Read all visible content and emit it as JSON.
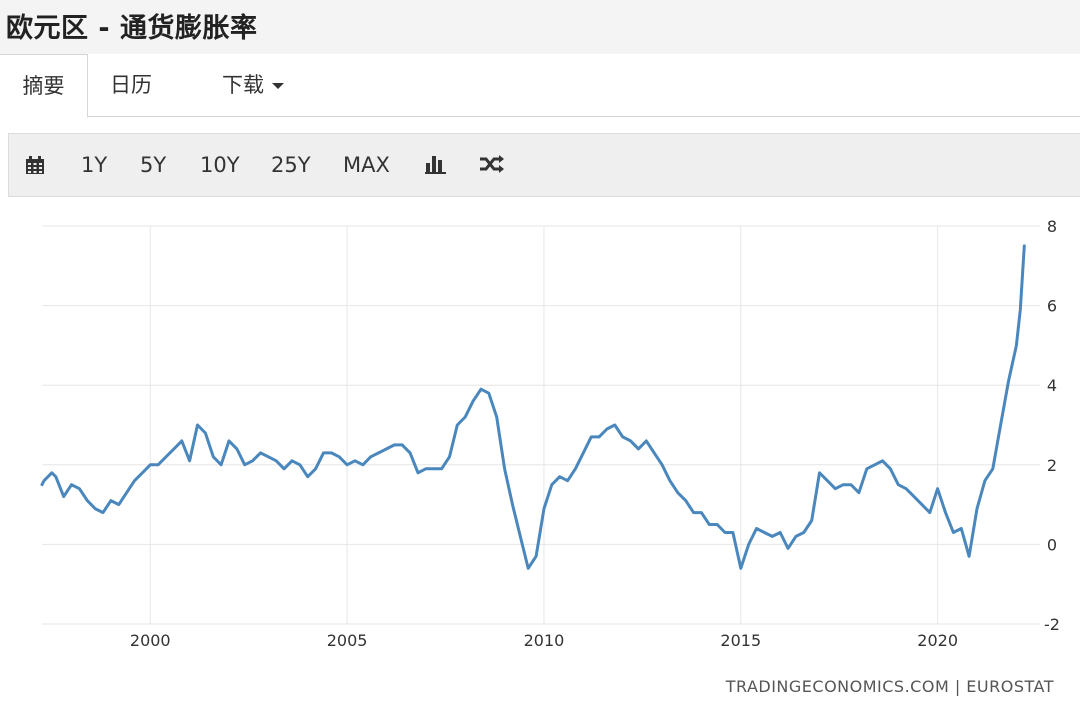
{
  "header": {
    "title": "欧元区 - 通货膨胀率"
  },
  "tabs": [
    {
      "label": "摘要",
      "active": true
    },
    {
      "label": "日历",
      "active": false
    },
    {
      "label": "下载",
      "active": false
    }
  ],
  "toolbar": {
    "calendar_icon": "calendar-icon",
    "ranges": [
      "1Y",
      "5Y",
      "10Y",
      "25Y",
      "MAX"
    ],
    "bar_chart_icon": "bar-chart-icon",
    "shuffle_icon": "shuffle-icon"
  },
  "source": "TRADINGECONOMICS.COM | EUROSTAT",
  "colors": {
    "line": "#4a87bd",
    "grid": "#e6e6e6",
    "text": "#333333"
  },
  "chart_data": {
    "type": "line",
    "title": "",
    "xlabel": "",
    "ylabel": "",
    "x_ticks": [
      2000,
      2005,
      2010,
      2015,
      2020
    ],
    "y_ticks": [
      8,
      6,
      4,
      2,
      0,
      -2
    ],
    "xlim": [
      1997.25,
      2022.6
    ],
    "ylim": [
      -2,
      8
    ],
    "y_axis_position": "right",
    "grid": true,
    "series": [
      {
        "name": "",
        "color": "#4a87bd",
        "x": [
          1997.0,
          1997.3,
          1997.5,
          1997.6,
          1997.8,
          1998.0,
          1998.2,
          1998.4,
          1998.6,
          1998.8,
          1999.0,
          1999.2,
          1999.4,
          1999.6,
          1999.8,
          2000.0,
          2000.2,
          2000.4,
          2000.6,
          2000.8,
          2001.0,
          2001.2,
          2001.4,
          2001.6,
          2001.8,
          2002.0,
          2002.2,
          2002.4,
          2002.6,
          2002.8,
          2003.0,
          2003.2,
          2003.4,
          2003.6,
          2003.8,
          2004.0,
          2004.2,
          2004.4,
          2004.6,
          2004.8,
          2005.0,
          2005.2,
          2005.4,
          2005.6,
          2005.8,
          2006.0,
          2006.2,
          2006.4,
          2006.6,
          2006.8,
          2007.0,
          2007.2,
          2007.4,
          2007.6,
          2007.8,
          2008.0,
          2008.2,
          2008.4,
          2008.6,
          2008.8,
          2009.0,
          2009.2,
          2009.4,
          2009.6,
          2009.8,
          2010.0,
          2010.2,
          2010.4,
          2010.6,
          2010.8,
          2011.0,
          2011.2,
          2011.4,
          2011.6,
          2011.8,
          2012.0,
          2012.2,
          2012.4,
          2012.6,
          2012.8,
          2013.0,
          2013.2,
          2013.4,
          2013.6,
          2013.8,
          2014.0,
          2014.2,
          2014.4,
          2014.6,
          2014.8,
          2015.0,
          2015.2,
          2015.4,
          2015.6,
          2015.8,
          2016.0,
          2016.2,
          2016.4,
          2016.6,
          2016.8,
          2017.0,
          2017.2,
          2017.4,
          2017.6,
          2017.8,
          2018.0,
          2018.2,
          2018.4,
          2018.6,
          2018.8,
          2019.0,
          2019.2,
          2019.4,
          2019.6,
          2019.8,
          2020.0,
          2020.2,
          2020.4,
          2020.6,
          2020.8,
          2021.0,
          2021.2,
          2021.4,
          2021.6,
          2021.8,
          2022.0,
          2022.1,
          2022.2
        ],
        "values": [
          1.5,
          1.6,
          1.8,
          1.7,
          1.2,
          1.5,
          1.4,
          1.1,
          0.9,
          0.8,
          1.1,
          1.0,
          1.3,
          1.6,
          1.8,
          2.0,
          2.0,
          2.2,
          2.4,
          2.6,
          2.1,
          3.0,
          2.8,
          2.2,
          2.0,
          2.6,
          2.4,
          2.0,
          2.1,
          2.3,
          2.2,
          2.1,
          1.9,
          2.1,
          2.0,
          1.7,
          1.9,
          2.3,
          2.3,
          2.2,
          2.0,
          2.1,
          2.0,
          2.2,
          2.3,
          2.4,
          2.5,
          2.5,
          2.3,
          1.8,
          1.9,
          1.9,
          1.9,
          2.2,
          3.0,
          3.2,
          3.6,
          3.9,
          3.8,
          3.2,
          1.9,
          1.0,
          0.2,
          -0.6,
          -0.3,
          0.9,
          1.5,
          1.7,
          1.6,
          1.9,
          2.3,
          2.7,
          2.7,
          2.9,
          3.0,
          2.7,
          2.6,
          2.4,
          2.6,
          2.3,
          2.0,
          1.6,
          1.3,
          1.1,
          0.8,
          0.8,
          0.5,
          0.5,
          0.3,
          0.3,
          -0.6,
          0.0,
          0.4,
          0.3,
          0.2,
          0.3,
          -0.1,
          0.2,
          0.3,
          0.6,
          1.8,
          1.6,
          1.4,
          1.5,
          1.5,
          1.3,
          1.9,
          2.0,
          2.1,
          1.9,
          1.5,
          1.4,
          1.2,
          1.0,
          0.8,
          1.4,
          0.8,
          0.3,
          0.4,
          -0.3,
          0.9,
          1.6,
          1.9,
          3.0,
          4.1,
          5.0,
          5.9,
          7.5
        ]
      }
    ]
  }
}
